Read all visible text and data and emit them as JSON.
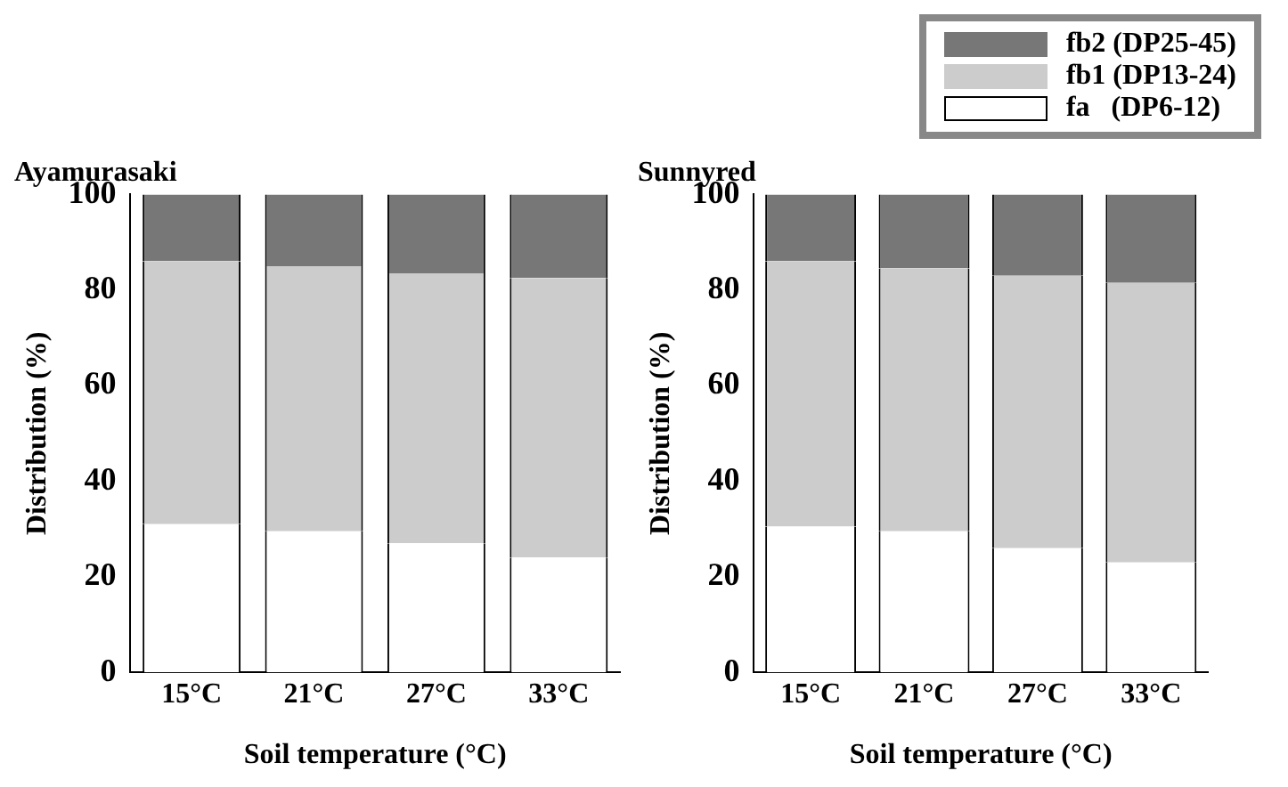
{
  "chart_data": [
    {
      "type": "bar",
      "title": "Ayamurasaki",
      "xlabel": "Soil temperature (°C)",
      "ylabel": "Distribution (%)",
      "categories": [
        "15°C",
        "21°C",
        "27°C",
        "33°C"
      ],
      "stacked": true,
      "ylim": [
        0,
        100
      ],
      "yticks": [
        0,
        20,
        40,
        60,
        80,
        100
      ],
      "grid": false,
      "legend": false,
      "series": [
        {
          "color": "#ffffff",
          "values": [
            31,
            29.5,
            27,
            24
          ]
        },
        {
          "color": "#cccccc",
          "values": [
            55,
            55.5,
            56.5,
            58.5
          ]
        },
        {
          "color": "#777777",
          "values": [
            14,
            15,
            16.5,
            17.5
          ]
        }
      ]
    },
    {
      "type": "bar",
      "title": "Sunnyred",
      "xlabel": "Soil temperature (°C)",
      "ylabel": "Distribution (%)",
      "categories": [
        "15°C",
        "21°C",
        "27°C",
        "33°C"
      ],
      "stacked": true,
      "ylim": [
        0,
        100
      ],
      "yticks": [
        0,
        20,
        40,
        60,
        80,
        100
      ],
      "grid": false,
      "legend": "top right",
      "series": [
        {
          "name": "fa   (DP6-12)",
          "color": "#ffffff",
          "values": [
            30.5,
            29.5,
            26,
            23
          ]
        },
        {
          "name": "fb1 (DP13-24)",
          "color": "#cccccc",
          "values": [
            55.5,
            55,
            57,
            58.5
          ]
        },
        {
          "name": "fb2 (DP25-45)",
          "color": "#777777",
          "values": [
            14,
            15.5,
            17,
            18.5
          ]
        }
      ]
    }
  ]
}
